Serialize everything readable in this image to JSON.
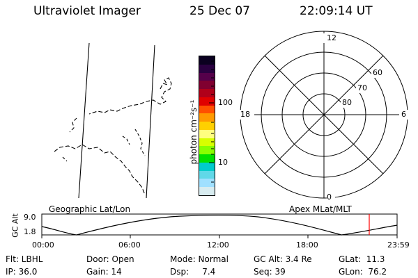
{
  "header": {
    "instrument": "Ultraviolet Imager",
    "date": "25 Dec 07",
    "time": "22:09:14 UT"
  },
  "colorbar": {
    "unit_label": "photon cm⁻²s⁻¹",
    "tick_100": "100",
    "tick_10": "10",
    "colors": [
      "#0b0020",
      "#2a0040",
      "#55004a",
      "#800030",
      "#b0001a",
      "#e00000",
      "#ff5000",
      "#ff9a00",
      "#ffd000",
      "#ffff80",
      "#d8ff00",
      "#88ff00",
      "#00e000",
      "#00cccc",
      "#60d8e8",
      "#a0e0ff",
      "#d8ecf0"
    ]
  },
  "polar": {
    "mlt_labels": [
      "12",
      "6",
      "0",
      "18"
    ],
    "lat_labels": [
      "60",
      "70",
      "80"
    ]
  },
  "timeline": {
    "left_caption": "Geographic Lat/Lon",
    "right_caption": "Apex MLat/MLT",
    "y_axis_label": "GC Alt",
    "y_top": "9.0",
    "y_bottom": "1.8",
    "x_ticks": [
      "00:00",
      "06:00",
      "12:00",
      "18:00",
      "23:59"
    ],
    "current_marker_color": "#ff0000"
  },
  "status": {
    "flt": "Flt: LBHL",
    "door": "Door: Open",
    "mode": "Mode: Normal",
    "gc_alt": "GC Alt: 3.4 Re",
    "glat": "GLat:  11.3",
    "ip": "IP: 36.0",
    "gain": "Gain: 14",
    "dsp": "Dsp:     7.4",
    "seq": "Seq: 39",
    "glon": "GLon:  76.2"
  }
}
